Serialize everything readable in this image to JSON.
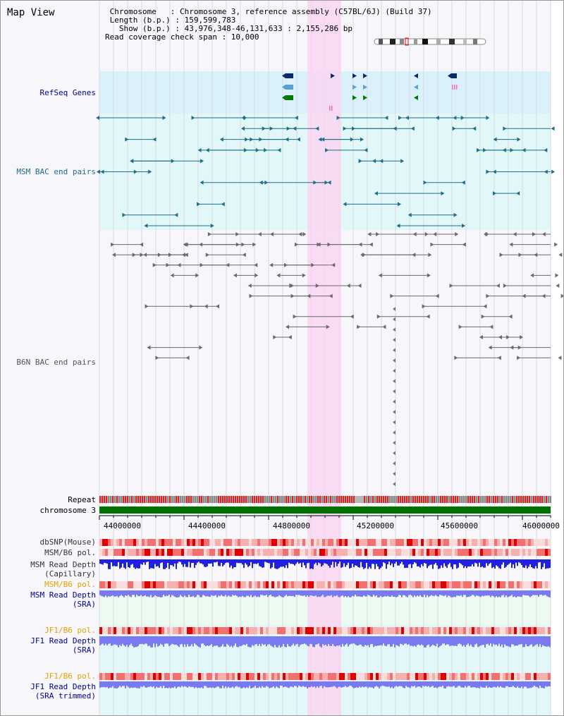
{
  "window": {
    "title": "Map View"
  },
  "header": {
    "line1": " Chromosome   : Chromosome 3, reference assembly (C57BL/6J) (Build 37)",
    "line2": " Length (b.p.) : 159,599,783",
    "line3": "   Show (b.p.) : 43,976,348-46,131,633 : 2,155,286 bp",
    "line4": "Read coverage check span : 10,000"
  },
  "tracks": {
    "refseq": "RefSeq Genes",
    "msm_bac": "MSM BAC end pairs",
    "b6n_bac": "B6N BAC end pairs",
    "repeat": "Repeat",
    "chromosome": "chromosome 3",
    "dbsnp": "dbSNP(Mouse)",
    "msm_b6_pol_1": "MSM/B6 pol.",
    "msm_depth_cap_1": "MSM Read Depth",
    "msm_depth_cap_2": "(Capillary)",
    "msm_b6_pol_2": "MSM/B6 pol.",
    "msm_depth_sra_1": "MSM Read Depth",
    "msm_depth_sra_2": "(SRA)",
    "jf1_pol_1": "JF1/B6 pol.",
    "jf1_depth_sra_1": "JF1 Read Depth",
    "jf1_depth_sra_2": "(SRA)",
    "jf1_pol_2": "JF1/B6 pol.",
    "jf1_depth_trim_1": "JF1 Read Depth",
    "jf1_depth_trim_2": "(SRA trimmed)"
  },
  "axis": {
    "ticks": [
      "44000000",
      "44400000",
      "44800000",
      "45200000",
      "45600000",
      "46000000"
    ]
  },
  "colors": {
    "highlight": "#f9d6f1",
    "refseq_bg": "#daf0fb",
    "msm_bac_bg": "#e2f8f8",
    "msm_bac": "#1c6e8a",
    "b6n_bac": "#6a6a6a",
    "chromosome": "#007000",
    "label_orange": "#e6a000",
    "label_navy": "#000090",
    "label_teal": "#1a6e8a",
    "depth_blue": "#2020e0",
    "depth_light": "#7a7af0"
  }
}
